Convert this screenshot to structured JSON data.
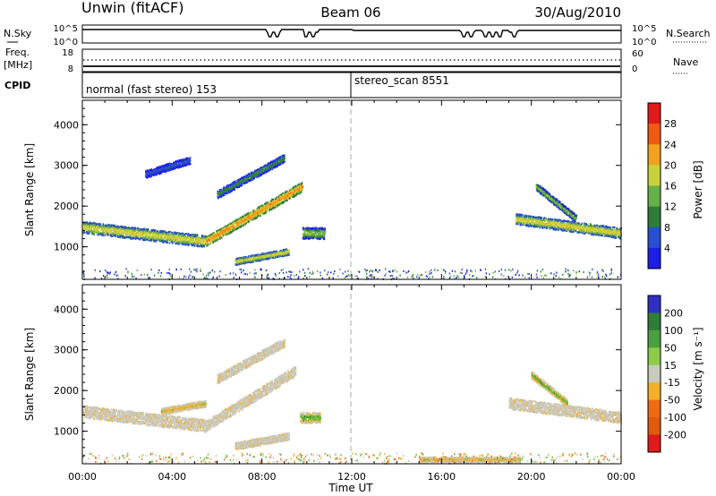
{
  "header": {
    "station": "Unwin (fitACF)",
    "beam": "Beam 06",
    "date": "30/Aug/2010"
  },
  "noise_panel": {
    "left_label": "N.Sky",
    "left_ticks": [
      "10^5",
      "10^0"
    ],
    "right_ticks": [
      "10^5",
      "10^0"
    ],
    "right_label": "N.Search"
  },
  "freq_panel": {
    "left_label_1": "Freq.",
    "left_label_2": "[MHz]",
    "left_ticks": [
      "18",
      "8"
    ],
    "right_ticks": [
      "60",
      "0"
    ],
    "right_label": "Nave"
  },
  "cpid_panel": {
    "label": "CPID",
    "modes": [
      "normal (fast stereo) 153",
      "stereo_scan 8551"
    ]
  },
  "power_legend": {
    "title": "Power [dB]",
    "ticks": [
      "28",
      "24",
      "20",
      "16",
      "12",
      "8",
      "4"
    ]
  },
  "velocity_legend": {
    "title": "Velocity [m s⁻¹]",
    "ticks": [
      "200",
      "100",
      "50",
      "15",
      "-15",
      "-50",
      "-100",
      "-200"
    ]
  },
  "chart_data": [
    {
      "type": "heatmap",
      "title": "",
      "xlabel": "Time UT",
      "ylabel": "Slant Range [km]",
      "x_ticks": [
        "00:00",
        "04:00",
        "08:00",
        "12:00",
        "16:00",
        "20:00",
        "00:00"
      ],
      "y_ticks": [
        "1000",
        "2000",
        "3000",
        "4000"
      ],
      "xlim": [
        0,
        24
      ],
      "ylim": [
        200,
        4600
      ],
      "colorbar": "Power [dB]",
      "colors": [
        "#1e1ee6",
        "#2a4fd0",
        "#2e7d3a",
        "#66b04a",
        "#c8d23c",
        "#f2a21e",
        "#ef5a14",
        "#e01a1a"
      ],
      "bands": [
        {
          "t0": 0.0,
          "t1": 5.5,
          "r0": 1500,
          "r1": 1150,
          "w": 280,
          "level": 4
        },
        {
          "t0": 5.5,
          "t1": 9.8,
          "r0": 1150,
          "r1": 2500,
          "w": 240,
          "level": 5
        },
        {
          "t0": 6.0,
          "t1": 9.0,
          "r0": 2300,
          "r1": 3200,
          "w": 200,
          "level": 2
        },
        {
          "t0": 2.8,
          "t1": 4.8,
          "r0": 2800,
          "r1": 3150,
          "w": 180,
          "level": 1
        },
        {
          "t0": 6.8,
          "t1": 9.2,
          "r0": 650,
          "r1": 900,
          "w": 160,
          "level": 4
        },
        {
          "t0": 9.8,
          "t1": 10.8,
          "r0": 1350,
          "r1": 1350,
          "w": 280,
          "level": 3
        },
        {
          "t0": 19.3,
          "t1": 24.0,
          "r0": 1700,
          "r1": 1350,
          "w": 260,
          "level": 4
        },
        {
          "t0": 20.2,
          "t1": 22.0,
          "r0": 2500,
          "r1": 1700,
          "w": 180,
          "level": 3
        }
      ]
    },
    {
      "type": "heatmap",
      "title": "",
      "xlabel": "Time UT",
      "ylabel": "Slant Range [km]",
      "x_ticks": [
        "00:00",
        "04:00",
        "08:00",
        "12:00",
        "16:00",
        "20:00",
        "00:00"
      ],
      "y_ticks": [
        "1000",
        "2000",
        "3000",
        "4000"
      ],
      "xlim": [
        0,
        24
      ],
      "ylim": [
        200,
        4600
      ],
      "colorbar": "Velocity [m s⁻¹]",
      "colors": [
        "#c9c9bd",
        "#f2b02a",
        "#66b83c",
        "#2e7d3a",
        "#ef6a14",
        "#3030c0"
      ],
      "bands": [
        {
          "t0": 0.0,
          "t1": 5.5,
          "r0": 1500,
          "r1": 1150,
          "w": 300,
          "level": 0
        },
        {
          "t0": 5.5,
          "t1": 9.5,
          "r0": 1150,
          "r1": 2500,
          "w": 260,
          "level": 0
        },
        {
          "t0": 6.0,
          "t1": 9.0,
          "r0": 2300,
          "r1": 3200,
          "w": 220,
          "level": 0
        },
        {
          "t0": 6.8,
          "t1": 9.2,
          "r0": 650,
          "r1": 900,
          "w": 180,
          "level": 0
        },
        {
          "t0": 9.7,
          "t1": 10.6,
          "r0": 1350,
          "r1": 1350,
          "w": 260,
          "level": 2
        },
        {
          "t0": 3.5,
          "t1": 5.5,
          "r0": 1500,
          "r1": 1700,
          "w": 160,
          "level": 1
        },
        {
          "t0": 19.0,
          "t1": 24.0,
          "r0": 1700,
          "r1": 1350,
          "w": 280,
          "level": 0
        },
        {
          "t0": 20.0,
          "t1": 21.6,
          "r0": 2400,
          "r1": 1700,
          "w": 180,
          "level": 2
        },
        {
          "t0": 15.0,
          "t1": 19.5,
          "r0": 320,
          "r1": 320,
          "w": 120,
          "level": 1
        }
      ]
    }
  ]
}
